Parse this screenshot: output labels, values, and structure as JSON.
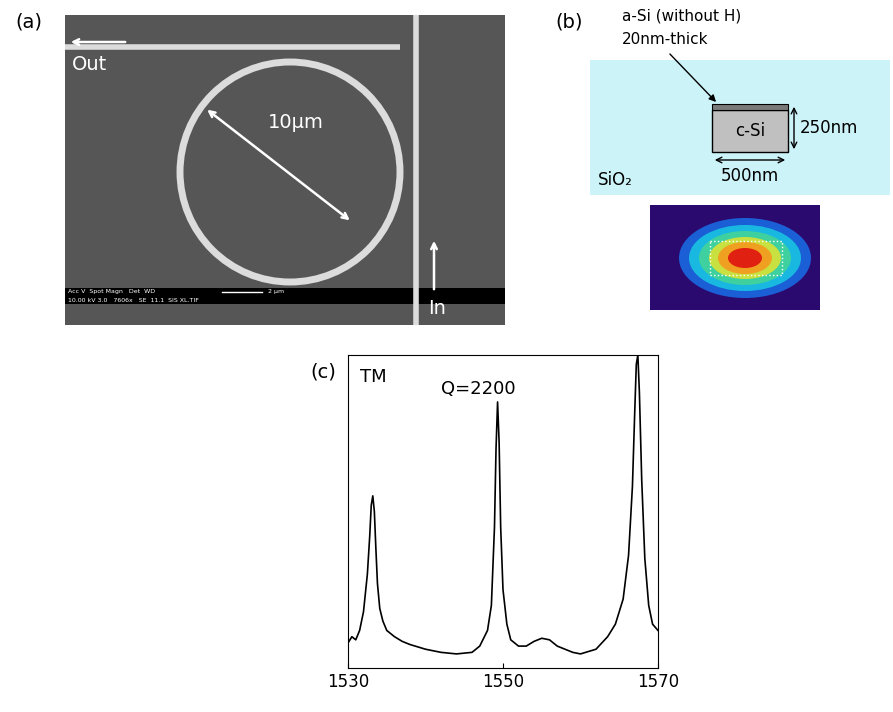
{
  "diagram": {
    "panel_a": {
      "label": "(a)",
      "out": "Out",
      "in": "In",
      "diameter": "10μm",
      "sem_info": [
        "Acc V  Spot Magn   Det  WD",
        "10.00 kV 3.0   7606x   SE  11.1  SIS XL.TIF"
      ],
      "scale_bar": "2 μm"
    },
    "panel_b": {
      "label": "(b)",
      "layer_label": "a-Si (without H)",
      "layer_thickness": "20nm-thick",
      "core": "c-Si",
      "height": "250nm",
      "width": "500nm",
      "cladding": "SiO₂"
    },
    "panel_c": {
      "label": "(c)"
    }
  },
  "chart_data": {
    "type": "line",
    "color": "#000000",
    "annotations": [
      "TM",
      "Q=2200"
    ],
    "x": [
      1530,
      1530.5,
      1531,
      1531.5,
      1532,
      1532.5,
      1532.8,
      1533.0,
      1533.2,
      1533.4,
      1533.6,
      1533.8,
      1534.1,
      1534.5,
      1535,
      1536,
      1537,
      1538,
      1540,
      1542,
      1544,
      1546,
      1547,
      1548,
      1548.5,
      1548.9,
      1549.1,
      1549.3,
      1549.5,
      1549.7,
      1550.0,
      1550.5,
      1551,
      1552,
      1553,
      1554,
      1555,
      1556,
      1557,
      1558,
      1559,
      1560,
      1562,
      1563.5,
      1564.5,
      1565.5,
      1566.2,
      1566.7,
      1567.0,
      1567.2,
      1567.4,
      1567.6,
      1567.9,
      1568.3,
      1568.8,
      1569.3,
      1570
    ],
    "values": [
      0.08,
      0.1,
      0.09,
      0.12,
      0.18,
      0.3,
      0.42,
      0.52,
      0.55,
      0.5,
      0.38,
      0.27,
      0.19,
      0.15,
      0.12,
      0.1,
      0.085,
      0.075,
      0.06,
      0.05,
      0.045,
      0.05,
      0.07,
      0.12,
      0.2,
      0.45,
      0.7,
      0.85,
      0.72,
      0.45,
      0.25,
      0.14,
      0.09,
      0.07,
      0.07,
      0.085,
      0.095,
      0.09,
      0.07,
      0.06,
      0.05,
      0.045,
      0.06,
      0.1,
      0.14,
      0.22,
      0.36,
      0.58,
      0.82,
      0.97,
      1.0,
      0.88,
      0.6,
      0.35,
      0.2,
      0.14,
      0.12
    ],
    "xlim": [
      1530,
      1570
    ],
    "xticks": [
      1530,
      1550,
      1570
    ],
    "ylim": [
      0,
      1.0
    ],
    "yticks": [],
    "tick_labels": "x"
  }
}
